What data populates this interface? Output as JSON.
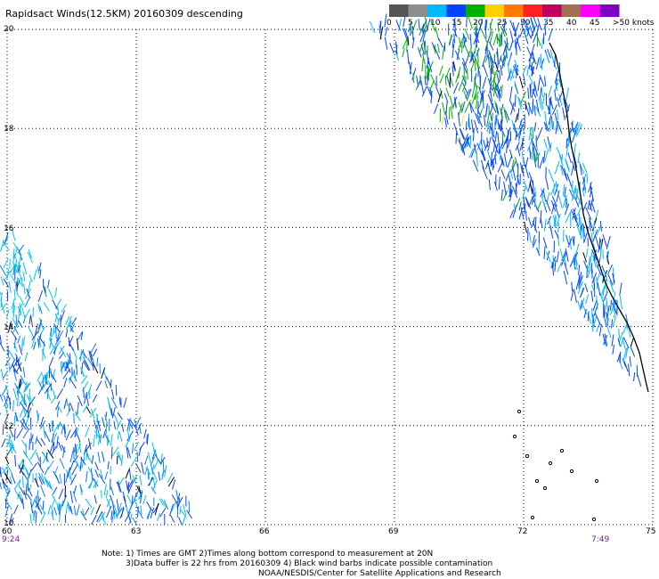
{
  "title": "Rapidsact Winds(12.5KM) 20160309 descending",
  "color_scale": {
    "labels": [
      "0",
      "5",
      "10",
      "15",
      "20",
      "25",
      "30",
      "35",
      "40",
      "45",
      ">50 knots"
    ],
    "colors": [
      "#555555",
      "#8e8e8e",
      "#00b8ff",
      "#0044ff",
      "#00b000",
      "#ffd000",
      "#ff7a00",
      "#ff2020",
      "#c00060",
      "#a07050",
      "#ff00ff",
      "#8000c0"
    ]
  },
  "map": {
    "lat_labels": [
      "20",
      "18",
      "16",
      "14",
      "12",
      "10"
    ],
    "lon_labels": [
      "60",
      "63",
      "66",
      "69",
      "72",
      "75"
    ],
    "time_left": "9:24",
    "time_right": "7:49",
    "grid": "dotted"
  },
  "footer": {
    "line1": "Note: 1) Times are GMT 2)Times along bottom correspond to measurement at 20N",
    "line2": "3)Data buffer is 22 hrs from 20160309 4) Black wind barbs indicate possible contamination",
    "line3": "NOAA/NESDIS/Center for Satellite Applications and Research"
  }
}
